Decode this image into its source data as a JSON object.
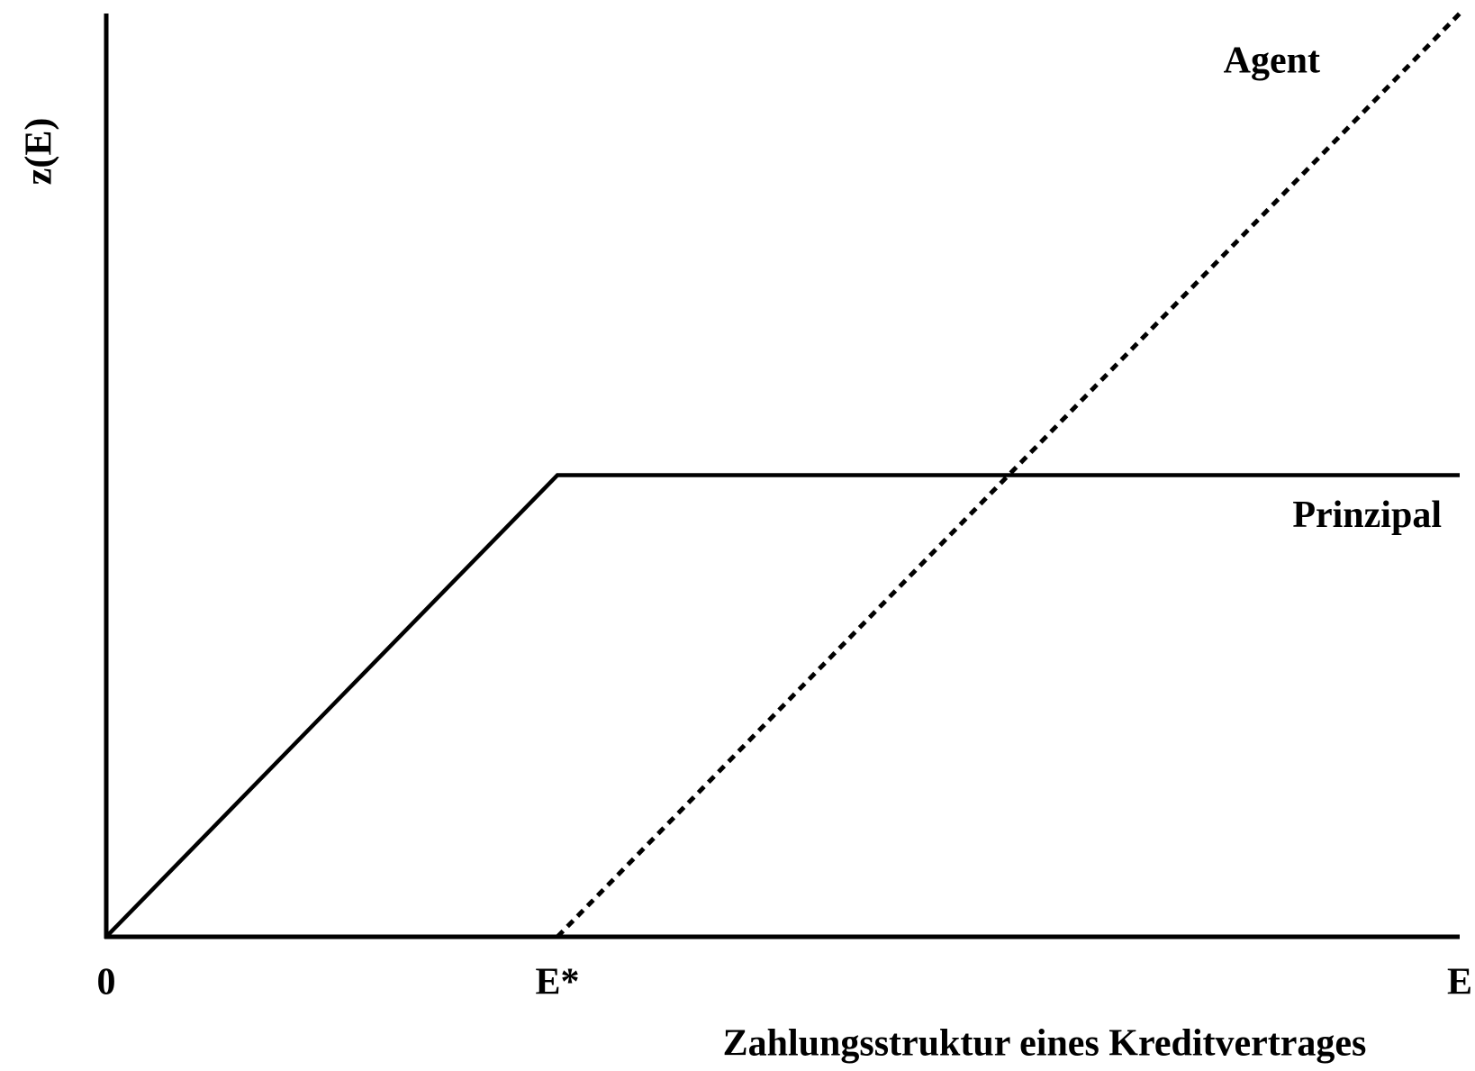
{
  "chart_data": {
    "type": "line",
    "x_label": "Zahlungsstruktur eines Kreditvertrages",
    "y_label": "z(E)",
    "xlim": [
      0,
      3
    ],
    "ylim": [
      0,
      2
    ],
    "xticks": [
      0,
      {
        "value": 1,
        "label": "E*"
      },
      {
        "value": 3,
        "label": "E"
      }
    ],
    "series": [
      {
        "name": "Prinzipal",
        "color": "#000000",
        "style": "solid",
        "x": [
          0,
          1,
          3
        ],
        "values": [
          0,
          1,
          1
        ]
      },
      {
        "name": "Agent",
        "color": "#000000",
        "style": "dotted",
        "x": [
          1,
          3
        ],
        "values": [
          0,
          2
        ]
      }
    ]
  }
}
